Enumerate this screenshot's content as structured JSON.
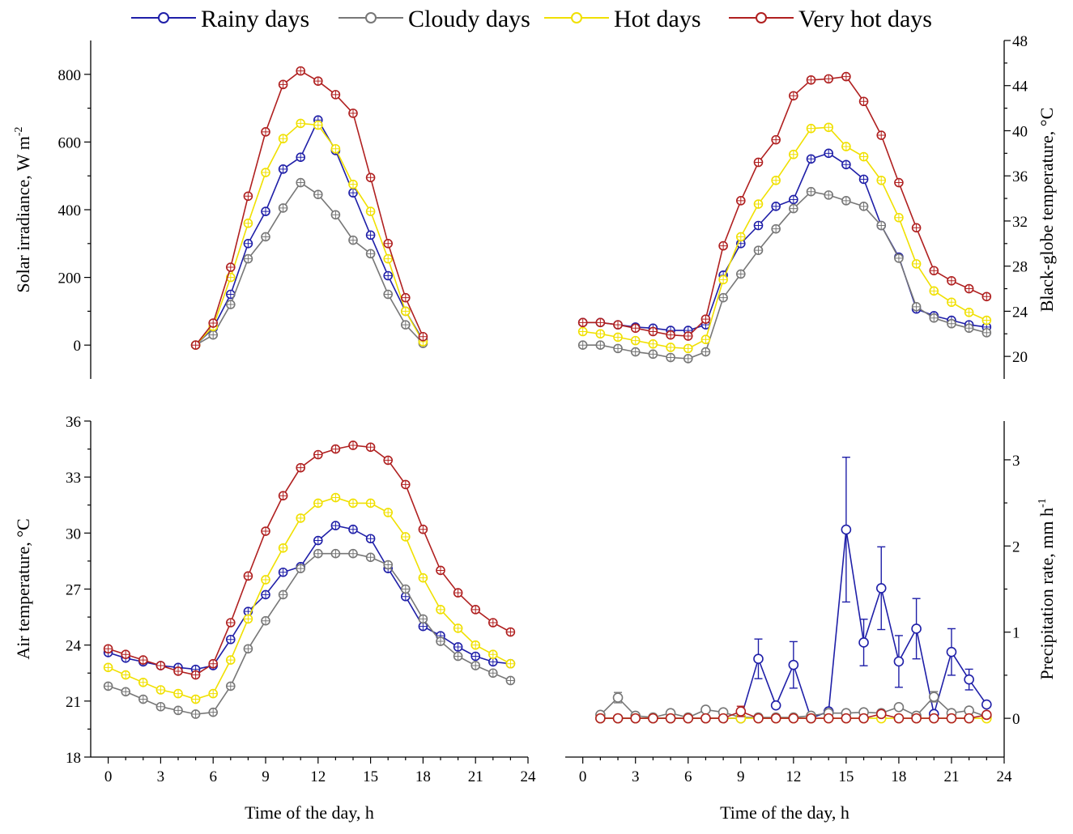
{
  "legend": [
    {
      "name": "Rainy days",
      "color": "#1f1fa8"
    },
    {
      "name": "Cloudy days",
      "color": "#777777"
    },
    {
      "name": "Hot days",
      "color": "#f0e000"
    },
    {
      "name": "Very hot days",
      "color": "#b02020"
    }
  ],
  "chart_data": [
    {
      "id": "solar",
      "type": "line",
      "title": "",
      "xlabel": "",
      "ylabel": "Solar irradiance, W m-2",
      "ylabel_main": "Solar irradiance, W m",
      "ylabel_sup": "-2",
      "xlim": [
        -1,
        24
      ],
      "ylim": [
        -100,
        900
      ],
      "xticks": [],
      "yticks": [
        0,
        200,
        400,
        600,
        800
      ],
      "yaxis_side": "left",
      "series": [
        {
          "name": "Rainy days",
          "x": [
            5,
            6,
            7,
            8,
            9,
            10,
            11,
            12,
            13,
            14,
            15,
            16,
            17,
            18
          ],
          "values": [
            0,
            50,
            150,
            300,
            395,
            520,
            555,
            665,
            575,
            450,
            325,
            205,
            100,
            15
          ]
        },
        {
          "name": "Cloudy days",
          "x": [
            5,
            6,
            7,
            8,
            9,
            10,
            11,
            12,
            13,
            14,
            15,
            16,
            17,
            18
          ],
          "values": [
            0,
            30,
            120,
            255,
            320,
            405,
            480,
            445,
            385,
            310,
            270,
            150,
            60,
            5
          ]
        },
        {
          "name": "Hot days",
          "x": [
            5,
            6,
            7,
            8,
            9,
            10,
            11,
            12,
            13,
            14,
            15,
            16,
            17,
            18
          ],
          "values": [
            0,
            55,
            200,
            360,
            510,
            610,
            655,
            650,
            580,
            475,
            395,
            255,
            100,
            10
          ]
        },
        {
          "name": "Very hot days",
          "x": [
            5,
            6,
            7,
            8,
            9,
            10,
            11,
            12,
            13,
            14,
            15,
            16,
            17,
            18
          ],
          "values": [
            0,
            65,
            230,
            440,
            630,
            770,
            810,
            780,
            740,
            685,
            495,
            300,
            140,
            25
          ]
        }
      ]
    },
    {
      "id": "globe",
      "type": "line",
      "title": "",
      "xlabel": "",
      "ylabel": "Black-globe temperature, °C",
      "xlim": [
        -1,
        24
      ],
      "ylim": [
        18,
        48
      ],
      "xticks": [],
      "yticks": [
        20,
        24,
        28,
        32,
        36,
        40,
        44,
        48
      ],
      "yaxis_side": "right",
      "series": [
        {
          "name": "Rainy days",
          "x": [
            0,
            1,
            2,
            3,
            4,
            5,
            6,
            7,
            8,
            9,
            10,
            11,
            12,
            13,
            14,
            15,
            16,
            17,
            18,
            19,
            20,
            21,
            22,
            23
          ],
          "values": [
            23.0,
            23.0,
            22.8,
            22.6,
            22.5,
            22.3,
            22.3,
            22.8,
            27.2,
            30.0,
            31.6,
            33.3,
            33.9,
            37.5,
            38.0,
            37.0,
            35.7,
            31.6,
            28.8,
            24.2,
            23.6,
            23.2,
            22.8,
            22.6
          ]
        },
        {
          "name": "Cloudy days",
          "x": [
            0,
            1,
            2,
            3,
            4,
            5,
            6,
            7,
            8,
            9,
            10,
            11,
            12,
            13,
            14,
            15,
            16,
            17,
            18,
            19,
            20,
            21,
            22,
            23
          ],
          "values": [
            21.0,
            21.0,
            20.7,
            20.4,
            20.2,
            19.9,
            19.8,
            20.4,
            25.2,
            27.3,
            29.4,
            31.3,
            33.1,
            34.6,
            34.3,
            33.8,
            33.3,
            31.6,
            28.7,
            24.4,
            23.4,
            22.9,
            22.5,
            22.1
          ]
        },
        {
          "name": "Hot days",
          "x": [
            0,
            1,
            2,
            3,
            4,
            5,
            6,
            7,
            8,
            9,
            10,
            11,
            12,
            13,
            14,
            15,
            16,
            17,
            18,
            19,
            20,
            21,
            22,
            23
          ],
          "values": [
            22.2,
            22.0,
            21.7,
            21.4,
            21.1,
            20.8,
            20.7,
            21.5,
            26.8,
            30.6,
            33.5,
            35.6,
            37.9,
            40.2,
            40.3,
            38.6,
            37.7,
            35.6,
            32.3,
            28.2,
            25.8,
            24.8,
            23.9,
            23.2
          ]
        },
        {
          "name": "Very hot days",
          "x": [
            0,
            1,
            2,
            3,
            4,
            5,
            6,
            7,
            8,
            9,
            10,
            11,
            12,
            13,
            14,
            15,
            16,
            17,
            18,
            19,
            20,
            21,
            22,
            23
          ],
          "values": [
            23.0,
            23.0,
            22.8,
            22.5,
            22.2,
            21.9,
            21.8,
            23.3,
            29.8,
            33.8,
            37.2,
            39.2,
            43.1,
            44.5,
            44.6,
            44.8,
            42.6,
            39.6,
            35.4,
            31.4,
            27.6,
            26.7,
            26.0,
            25.3
          ]
        }
      ]
    },
    {
      "id": "air",
      "type": "line",
      "title": "",
      "xlabel": "Time of the day, h",
      "ylabel": "Air temperature, °C",
      "xlim": [
        -1,
        24
      ],
      "ylim": [
        18,
        36
      ],
      "xticks": [
        0,
        3,
        6,
        9,
        12,
        15,
        18,
        21,
        24
      ],
      "yticks": [
        18,
        21,
        24,
        27,
        30,
        33,
        36
      ],
      "yaxis_side": "left",
      "series": [
        {
          "name": "Rainy days",
          "x": [
            0,
            1,
            2,
            3,
            4,
            5,
            6,
            7,
            8,
            9,
            10,
            11,
            12,
            13,
            14,
            15,
            16,
            17,
            18,
            19,
            20,
            21,
            22,
            23
          ],
          "values": [
            23.6,
            23.3,
            23.1,
            22.9,
            22.8,
            22.7,
            22.9,
            24.3,
            25.8,
            26.7,
            27.9,
            28.2,
            29.6,
            30.4,
            30.2,
            29.7,
            28.1,
            26.6,
            25.0,
            24.5,
            23.9,
            23.4,
            23.1,
            23.0
          ]
        },
        {
          "name": "Cloudy days",
          "x": [
            0,
            1,
            2,
            3,
            4,
            5,
            6,
            7,
            8,
            9,
            10,
            11,
            12,
            13,
            14,
            15,
            16,
            17,
            18,
            19,
            20,
            21,
            22,
            23
          ],
          "values": [
            21.8,
            21.5,
            21.1,
            20.7,
            20.5,
            20.3,
            20.4,
            21.8,
            23.8,
            25.3,
            26.7,
            28.1,
            28.9,
            28.9,
            28.9,
            28.7,
            28.3,
            27.0,
            25.4,
            24.2,
            23.4,
            22.9,
            22.5,
            22.1
          ]
        },
        {
          "name": "Hot days",
          "x": [
            0,
            1,
            2,
            3,
            4,
            5,
            6,
            7,
            8,
            9,
            10,
            11,
            12,
            13,
            14,
            15,
            16,
            17,
            18,
            19,
            20,
            21,
            22,
            23
          ],
          "values": [
            22.8,
            22.4,
            22.0,
            21.6,
            21.4,
            21.1,
            21.4,
            23.2,
            25.4,
            27.5,
            29.2,
            30.8,
            31.6,
            31.9,
            31.6,
            31.6,
            31.1,
            29.8,
            27.6,
            25.9,
            24.9,
            24.0,
            23.5,
            23.0
          ]
        },
        {
          "name": "Very hot days",
          "x": [
            0,
            1,
            2,
            3,
            4,
            5,
            6,
            7,
            8,
            9,
            10,
            11,
            12,
            13,
            14,
            15,
            16,
            17,
            18,
            19,
            20,
            21,
            22,
            23
          ],
          "values": [
            23.8,
            23.5,
            23.2,
            22.9,
            22.6,
            22.4,
            23.0,
            25.2,
            27.7,
            30.1,
            32.0,
            33.5,
            34.2,
            34.5,
            34.7,
            34.6,
            33.9,
            32.6,
            30.2,
            28.0,
            26.8,
            25.9,
            25.2,
            24.7
          ]
        }
      ]
    },
    {
      "id": "precip",
      "type": "line",
      "title": "",
      "xlabel": "Time of the day, h",
      "ylabel": "Precipitation rate, mm h-1",
      "ylabel_main": "Precipitation rate, mm h",
      "ylabel_sup": "-1",
      "xlim": [
        -1,
        24
      ],
      "ylim": [
        -0.45,
        3.45
      ],
      "xticks": [
        0,
        3,
        6,
        9,
        12,
        15,
        18,
        21,
        24
      ],
      "yticks": [
        0,
        1,
        2,
        3
      ],
      "yaxis_side": "right",
      "series": [
        {
          "name": "Rainy days",
          "x": [
            1,
            2,
            3,
            4,
            5,
            6,
            7,
            8,
            9,
            10,
            11,
            12,
            13,
            14,
            15,
            16,
            17,
            18,
            19,
            20,
            21,
            22,
            23
          ],
          "values": [
            0,
            0,
            0,
            0,
            0,
            0,
            0,
            0,
            0,
            0.69,
            0.15,
            0.62,
            0,
            0.08,
            2.19,
            0.88,
            1.51,
            0.66,
            1.04,
            0.05,
            0.77,
            0.45,
            0.16
          ],
          "errors": [
            0,
            0,
            0,
            0,
            0,
            0,
            0,
            0,
            0,
            0.23,
            0,
            0.27,
            0,
            0,
            0.84,
            0.27,
            0.48,
            0.3,
            0.35,
            0,
            0.27,
            0.12,
            0
          ]
        },
        {
          "name": "Cloudy days",
          "x": [
            1,
            2,
            3,
            4,
            5,
            6,
            7,
            8,
            9,
            10,
            11,
            12,
            13,
            14,
            15,
            16,
            17,
            18,
            19,
            20,
            21,
            22,
            23
          ],
          "values": [
            0.04,
            0.24,
            0.03,
            0.01,
            0.06,
            0.01,
            0.1,
            0.07,
            0.01,
            0.01,
            0.01,
            0.01,
            0.03,
            0.06,
            0.06,
            0.07,
            0.06,
            0.13,
            0.03,
            0.25,
            0.06,
            0.09,
            0.02
          ],
          "errors": [
            0,
            0.06,
            0,
            0,
            0.03,
            0,
            0,
            0,
            0,
            0,
            0,
            0,
            0,
            0.04,
            0,
            0,
            0,
            0,
            0,
            0.06,
            0,
            0.03,
            0
          ]
        },
        {
          "name": "Hot days",
          "x": [
            1,
            2,
            3,
            4,
            5,
            6,
            7,
            8,
            9,
            10,
            11,
            12,
            13,
            14,
            15,
            16,
            17,
            18,
            19,
            20,
            21,
            22,
            23
          ],
          "values": [
            0,
            0,
            0,
            0,
            0,
            0,
            0,
            0,
            0,
            0,
            0,
            0,
            0,
            0,
            0,
            0,
            0,
            0,
            0,
            0,
            0,
            0,
            0
          ],
          "errors": []
        },
        {
          "name": "Very hot days",
          "x": [
            1,
            2,
            3,
            4,
            5,
            6,
            7,
            8,
            9,
            10,
            11,
            12,
            13,
            14,
            15,
            16,
            17,
            18,
            19,
            20,
            21,
            22,
            23
          ],
          "values": [
            0,
            0,
            0,
            0,
            0,
            0,
            0,
            0,
            0.08,
            0,
            0,
            0,
            0,
            0,
            0,
            0,
            0.05,
            0,
            0,
            0,
            0,
            0,
            0.04
          ],
          "errors": [
            0,
            0,
            0,
            0,
            0,
            0,
            0,
            0,
            0.06,
            0,
            0,
            0,
            0,
            0,
            0,
            0,
            0,
            0,
            0,
            0,
            0,
            0,
            0
          ]
        }
      ]
    }
  ]
}
